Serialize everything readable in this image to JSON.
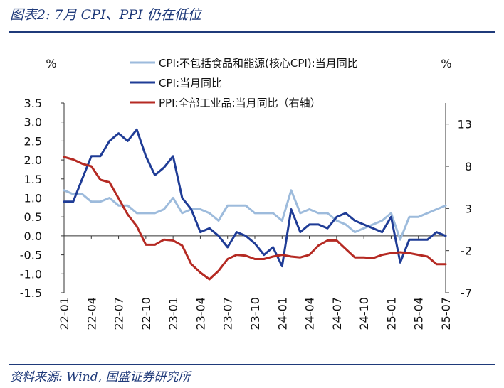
{
  "header": {
    "title": "图表2:  7月 CPI、PPI 仍在低位"
  },
  "footer": {
    "source": "资料来源:  Wind, 国盛证券研究所"
  },
  "chart_data": {
    "type": "line",
    "left_unit": "%",
    "right_unit": "%",
    "left_ylim": [
      -1.5,
      3.5
    ],
    "left_ticks": [
      "3.5",
      "3.0",
      "2.5",
      "2.0",
      "1.5",
      "1.0",
      "0.5",
      "0.0",
      "-0.5",
      "-1.0",
      "-1.5"
    ],
    "right_ylim": [
      -7,
      15.5
    ],
    "right_ticks": [
      "13",
      "8",
      "3",
      "-2",
      "-7"
    ],
    "x_tick_labels": [
      "22-01",
      "22-04",
      "22-07",
      "22-10",
      "23-01",
      "23-04",
      "23-07",
      "23-10",
      "24-01",
      "24-04",
      "24-07",
      "24-10",
      "25-01",
      "25-04",
      "25-07"
    ],
    "legend_position": "top-center",
    "grid": false,
    "series": [
      {
        "name": "CPI:不包括食品和能源(核心CPI):当月同比",
        "axis": "left",
        "color": "#9dbbdc",
        "values": [
          1.2,
          1.1,
          1.1,
          0.9,
          0.9,
          1.0,
          0.8,
          0.8,
          0.6,
          0.6,
          0.6,
          0.7,
          1.0,
          0.6,
          0.7,
          0.7,
          0.6,
          0.4,
          0.8,
          0.8,
          0.8,
          0.6,
          0.6,
          0.6,
          0.4,
          1.2,
          0.6,
          0.7,
          0.6,
          0.6,
          0.4,
          0.3,
          0.1,
          0.2,
          0.3,
          0.4,
          0.6,
          -0.1,
          0.5,
          0.5,
          0.6,
          0.7,
          0.8
        ]
      },
      {
        "name": "CPI:当月同比",
        "axis": "left",
        "color": "#1f3c96",
        "values": [
          0.9,
          0.9,
          1.5,
          2.1,
          2.1,
          2.5,
          2.7,
          2.5,
          2.8,
          2.1,
          1.6,
          1.8,
          2.1,
          1.0,
          0.7,
          0.1,
          0.2,
          0.0,
          -0.3,
          0.1,
          0.0,
          -0.2,
          -0.5,
          -0.3,
          -0.8,
          0.7,
          0.1,
          0.3,
          0.3,
          0.2,
          0.5,
          0.6,
          0.4,
          0.3,
          0.2,
          0.1,
          0.5,
          -0.7,
          -0.1,
          -0.1,
          -0.1,
          0.1,
          0.0
        ]
      },
      {
        "name": "PPI:全部工业品:当月同比（右轴）",
        "axis": "right",
        "color": "#b52a23",
        "values": [
          9.1,
          8.8,
          8.3,
          8.0,
          6.4,
          6.1,
          4.2,
          2.3,
          0.9,
          -1.3,
          -1.3,
          -0.7,
          -0.8,
          -1.4,
          -3.6,
          -4.6,
          -5.4,
          -4.4,
          -3.0,
          -2.5,
          -2.6,
          -3.0,
          -3.0,
          -2.7,
          -2.5,
          -2.7,
          -2.8,
          -2.5,
          -1.4,
          -0.8,
          -0.8,
          -1.8,
          -2.8,
          -2.8,
          -2.9,
          -2.5,
          -2.3,
          -2.2,
          -2.3,
          -2.5,
          -2.7,
          -3.6,
          -3.6
        ]
      }
    ]
  }
}
